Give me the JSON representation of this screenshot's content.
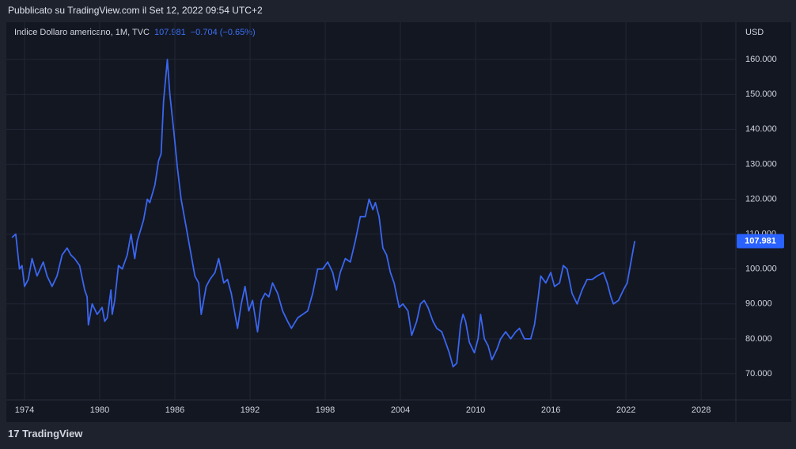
{
  "header": {
    "published": "Pubblicato su TradingView.com il Set 12, 2022 09:54 UTC+2"
  },
  "footer": {
    "brand": "TradingView"
  },
  "chart_data": {
    "type": "line",
    "title": "Indice Dollaro americano, 1M, TVC",
    "last_value": 107.981,
    "change": "−0.704 (−0.65%)",
    "currency": "USD",
    "color": "#3a66f0",
    "grid": true,
    "xlim": [
      1972.55,
      2030.77
    ],
    "ylim": [
      62.5,
      170.7
    ],
    "xticks": [
      1974,
      1980,
      1986,
      1992,
      1998,
      2004,
      2010,
      2016,
      2022,
      2028
    ],
    "yticks": [
      {
        "value": 70,
        "label": "70.000"
      },
      {
        "value": 80,
        "label": "80.000"
      },
      {
        "value": 90,
        "label": "90.000"
      },
      {
        "value": 100,
        "label": "100.000"
      },
      {
        "value": 110,
        "label": "110.000"
      },
      {
        "value": 120,
        "label": "120.000"
      },
      {
        "value": 130,
        "label": "130.000"
      },
      {
        "value": 140,
        "label": "140.000"
      },
      {
        "value": 150,
        "label": "150.000"
      },
      {
        "value": 160,
        "label": "160.000"
      }
    ],
    "x": [
      1973.0,
      1973.3,
      1973.6,
      1973.8,
      1974.0,
      1974.3,
      1974.6,
      1975.0,
      1975.5,
      1975.8,
      1976.2,
      1976.6,
      1977.0,
      1977.4,
      1977.7,
      1978.0,
      1978.4,
      1978.8,
      1979.0,
      1979.1,
      1979.4,
      1979.8,
      1980.2,
      1980.4,
      1980.6,
      1980.9,
      1981.0,
      1981.2,
      1981.5,
      1981.8,
      1982.2,
      1982.5,
      1982.8,
      1983.0,
      1983.5,
      1983.8,
      1984.0,
      1984.4,
      1984.7,
      1984.9,
      1985.1,
      1985.3,
      1985.4,
      1985.6,
      1985.9,
      1986.2,
      1986.5,
      1986.9,
      1987.2,
      1987.6,
      1987.9,
      1988.1,
      1988.5,
      1988.8,
      1989.2,
      1989.5,
      1989.9,
      1990.2,
      1990.5,
      1990.8,
      1991.0,
      1991.3,
      1991.6,
      1991.9,
      1992.2,
      1992.6,
      1992.9,
      1993.2,
      1993.5,
      1993.8,
      1994.2,
      1994.6,
      1995.0,
      1995.3,
      1995.8,
      1996.2,
      1996.6,
      1997.0,
      1997.4,
      1997.8,
      1998.2,
      1998.6,
      1998.9,
      1999.2,
      1999.6,
      2000.0,
      2000.4,
      2000.8,
      2001.2,
      2001.5,
      2001.8,
      2002.0,
      2002.3,
      2002.6,
      2002.9,
      2003.2,
      2003.5,
      2003.9,
      2004.2,
      2004.6,
      2004.9,
      2005.3,
      2005.6,
      2005.9,
      2006.2,
      2006.6,
      2006.9,
      2007.3,
      2007.7,
      2007.9,
      2008.2,
      2008.5,
      2008.8,
      2009.0,
      2009.2,
      2009.5,
      2009.9,
      2010.2,
      2010.4,
      2010.7,
      2011.0,
      2011.3,
      2011.7,
      2012.0,
      2012.4,
      2012.8,
      2013.2,
      2013.5,
      2013.9,
      2014.4,
      2014.7,
      2015.0,
      2015.2,
      2015.6,
      2016.0,
      2016.3,
      2016.7,
      2017.0,
      2017.3,
      2017.7,
      2018.1,
      2018.5,
      2018.9,
      2019.3,
      2019.7,
      2020.2,
      2020.5,
      2020.8,
      2021.0,
      2021.4,
      2021.8,
      2022.1,
      2022.4,
      2022.6,
      2022.7
    ],
    "values": [
      109,
      110,
      100,
      101,
      95,
      97,
      103,
      98,
      102,
      98,
      95,
      98,
      104,
      106,
      104,
      103,
      101,
      94,
      92,
      84,
      90,
      87,
      89,
      85,
      86,
      94,
      87,
      91,
      101,
      100,
      104,
      110,
      103,
      108,
      114,
      120,
      119,
      124,
      131,
      133,
      148,
      156,
      160,
      150,
      140,
      129,
      120,
      112,
      106,
      98,
      96,
      87,
      95,
      97,
      99,
      103,
      96,
      97,
      93,
      87,
      83,
      90,
      95,
      88,
      91,
      82,
      91,
      93,
      92,
      96,
      93,
      88,
      85,
      83,
      86,
      87,
      88,
      93,
      100,
      100,
      102,
      99,
      94,
      99,
      103,
      102,
      108,
      115,
      115,
      120,
      117,
      119,
      115,
      106,
      104,
      99,
      96,
      89,
      90,
      88,
      81,
      85,
      90,
      91,
      89,
      85,
      83,
      82,
      78,
      76,
      72,
      73,
      84,
      87,
      85,
      79,
      76,
      80,
      87,
      80,
      78,
      74,
      77,
      80,
      82,
      80,
      82,
      83,
      80,
      80,
      84,
      92,
      98,
      96,
      99,
      95,
      96,
      101,
      100,
      93,
      90,
      94,
      97,
      97,
      98,
      99,
      96,
      92,
      90,
      91,
      94,
      96,
      102,
      106,
      108
    ]
  }
}
